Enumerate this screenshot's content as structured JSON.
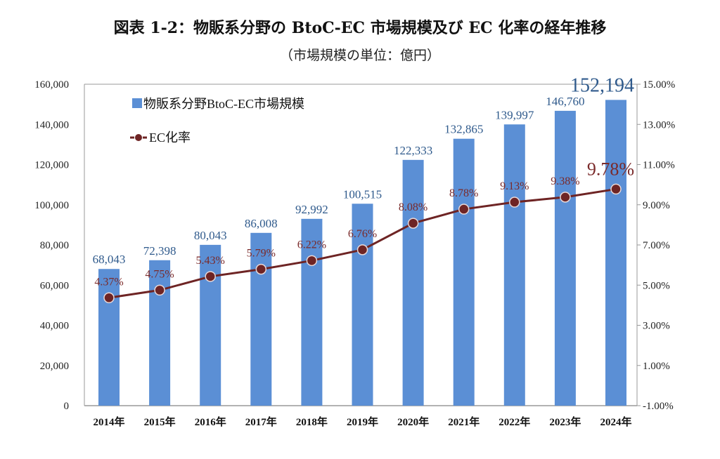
{
  "chart_data": {
    "type": "bar+line",
    "title": "図表 1-2：物販系分野の BtoC-EC 市場規模及び EC 化率の経年推移",
    "subtitle": "（市場規模の単位：億円）",
    "categories": [
      "2014年",
      "2015年",
      "2016年",
      "2017年",
      "2018年",
      "2019年",
      "2020年",
      "2021年",
      "2022年",
      "2023年",
      "2024年"
    ],
    "series": [
      {
        "name": "物販系分野BtoC-EC市場規模",
        "type": "bar",
        "axis": "left",
        "color": "#5b8fd5",
        "values": [
          68043,
          72398,
          80043,
          86008,
          92992,
          100515,
          122333,
          132865,
          139997,
          146760,
          152194
        ],
        "labels": [
          "68,043",
          "72,398",
          "80,043",
          "86,008",
          "92,992",
          "100,515",
          "122,333",
          "132,865",
          "139,997",
          "146,760",
          "152,194"
        ]
      },
      {
        "name": "EC化率",
        "type": "line",
        "axis": "right",
        "color": "#6e2424",
        "values": [
          4.37,
          4.75,
          5.43,
          5.79,
          6.22,
          6.76,
          8.08,
          8.78,
          9.13,
          9.38,
          9.78
        ],
        "labels": [
          "4.37%",
          "4.75%",
          "5.43%",
          "5.79%",
          "6.22%",
          "6.76%",
          "8.08%",
          "8.78%",
          "9.13%",
          "9.38%",
          "9.78%"
        ]
      }
    ],
    "y_left": {
      "range": [
        0,
        160000
      ],
      "ticks": [
        "0",
        "20,000",
        "40,000",
        "60,000",
        "80,000",
        "100,000",
        "120,000",
        "140,000",
        "160,000"
      ]
    },
    "y_right": {
      "range": [
        -1,
        15
      ],
      "ticks": [
        "-1.00%",
        "1.00%",
        "3.00%",
        "5.00%",
        "7.00%",
        "9.00%",
        "11.00%",
        "13.00%",
        "15.00%"
      ]
    },
    "legend_placement": "top-left",
    "grid": false
  }
}
